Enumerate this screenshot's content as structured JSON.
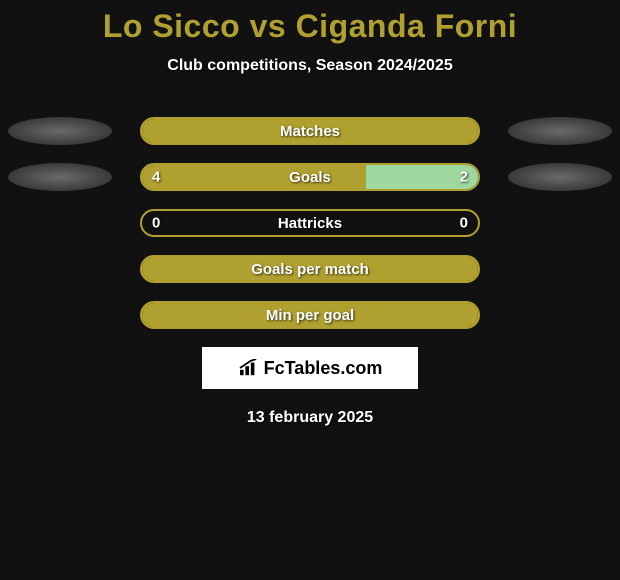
{
  "title": "Lo Sicco vs Ciganda Forni",
  "subtitle": "Club competitions, Season 2024/2025",
  "date": "13 february 2025",
  "logo_text": "FcTables.com",
  "colors": {
    "background": "#111111",
    "accent": "#b0a030",
    "opponent_fill": "#9fd89f",
    "text": "#ffffff",
    "ellipse": "#555555"
  },
  "rows": [
    {
      "label": "Matches",
      "left_value": "",
      "right_value": "",
      "left_pct": 100,
      "right_pct": 0,
      "left_color": "#b0a030",
      "right_color": "#9fd89f",
      "show_ellipses": true
    },
    {
      "label": "Goals",
      "left_value": "4",
      "right_value": "2",
      "left_pct": 66.7,
      "right_pct": 33.3,
      "left_color": "#b0a030",
      "right_color": "#9fd89f",
      "show_ellipses": true
    },
    {
      "label": "Hattricks",
      "left_value": "0",
      "right_value": "0",
      "left_pct": 0,
      "right_pct": 0,
      "left_color": "#b0a030",
      "right_color": "#9fd89f",
      "show_ellipses": false
    },
    {
      "label": "Goals per match",
      "left_value": "",
      "right_value": "",
      "left_pct": 100,
      "right_pct": 0,
      "left_color": "#b0a030",
      "right_color": "#9fd89f",
      "show_ellipses": false
    },
    {
      "label": "Min per goal",
      "left_value": "",
      "right_value": "",
      "left_pct": 100,
      "right_pct": 0,
      "left_color": "#b0a030",
      "right_color": "#9fd89f",
      "show_ellipses": false
    }
  ]
}
